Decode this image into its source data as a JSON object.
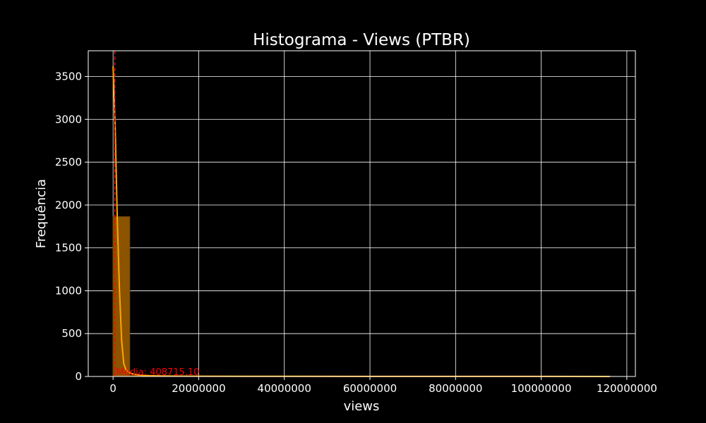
{
  "chart_data": {
    "type": "bar",
    "title": "Histograma - Views (PTBR)",
    "xlabel": "views",
    "ylabel": "Frequência",
    "xlim": [
      -5800000,
      122000000
    ],
    "ylim": [
      0,
      3800
    ],
    "x_ticks": [
      0,
      20000000,
      40000000,
      60000000,
      80000000,
      100000000,
      120000000
    ],
    "x_tick_labels": [
      "0",
      "20000000",
      "40000000",
      "60000000",
      "80000000",
      "100000000",
      "120000000"
    ],
    "y_ticks": [
      0,
      500,
      1000,
      1500,
      2000,
      2500,
      3000,
      3500
    ],
    "y_tick_labels": [
      "0",
      "500",
      "1000",
      "1500",
      "2000",
      "2500",
      "3000",
      "3500"
    ],
    "grid": true,
    "bins": [
      {
        "x0": 0,
        "x1": 3900000,
        "count": 1865
      },
      {
        "x0": 3900000,
        "x1": 7800000,
        "count": 14
      },
      {
        "x0": 7800000,
        "x1": 11700000,
        "count": 4
      },
      {
        "x0": 11700000,
        "x1": 15600000,
        "count": 2
      },
      {
        "x0": 31200000,
        "x1": 35100000,
        "count": 1
      },
      {
        "x0": 39000000,
        "x1": 42900000,
        "count": 1
      },
      {
        "x0": 113100000,
        "x1": 117000000,
        "count": 1
      }
    ],
    "kde": {
      "x": [
        0,
        500000,
        1000000,
        1500000,
        2000000,
        2500000,
        3000000,
        4000000,
        5000000,
        7000000,
        10000000,
        15000000,
        20000000,
        30000000,
        40000000,
        60000000,
        80000000,
        100000000,
        116000000
      ],
      "y": [
        3620,
        2900,
        1800,
        1000,
        420,
        150,
        80,
        40,
        25,
        12,
        7,
        4,
        3,
        2,
        2,
        1,
        1,
        1,
        0
      ]
    },
    "mean_line": {
      "value": 408715.1,
      "label": "Média: 408715.10"
    },
    "colors": {
      "bar_fill": "#8c5400",
      "bar_edge": "#6e4300",
      "kde": "#ffa500",
      "mean": "#ff0000",
      "grid": "#ffffff",
      "background": "#000000",
      "text": "#ffffff"
    }
  }
}
